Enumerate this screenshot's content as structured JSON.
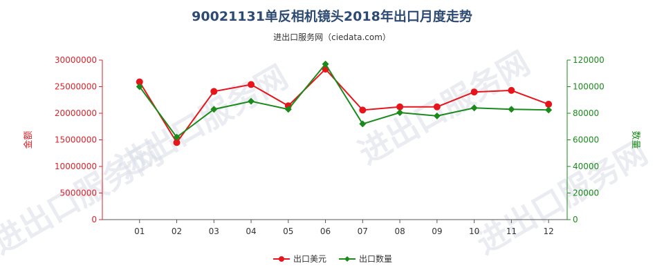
{
  "chart_data": {
    "type": "line",
    "title": "90021131单反相机镜头2018年出口月度走势",
    "subtitle": "进出口服务网（ciedata.com）",
    "watermark": "进出口服务网",
    "categories": [
      "01",
      "02",
      "03",
      "04",
      "05",
      "06",
      "07",
      "08",
      "09",
      "10",
      "11",
      "12"
    ],
    "y_left": {
      "label": "金额",
      "ylim": [
        0,
        30000000
      ],
      "ticks": [
        "0",
        "5000000",
        "10000000",
        "15000000",
        "20000000",
        "25000000",
        "30000000"
      ],
      "color": "#d9232a"
    },
    "y_right": {
      "label": "数量",
      "ylim": [
        0,
        120000
      ],
      "ticks": [
        "0",
        "20000",
        "40000",
        "60000",
        "80000",
        "100000",
        "120000"
      ],
      "color": "#1a8a1a"
    },
    "series": [
      {
        "name": "出口美元",
        "axis": "left",
        "color": "#e8141b",
        "values": [
          25900000,
          14500000,
          24100000,
          25400000,
          21400000,
          28300000,
          20600000,
          21200000,
          21200000,
          24000000,
          24300000,
          21700000
        ]
      },
      {
        "name": "出口数量",
        "axis": "right",
        "color": "#1a8a1a",
        "values": [
          100000,
          62000,
          83000,
          89000,
          83000,
          117000,
          72000,
          80500,
          78000,
          84000,
          83000,
          82500
        ]
      }
    ],
    "legend_position": "bottom-center",
    "grid": false
  }
}
